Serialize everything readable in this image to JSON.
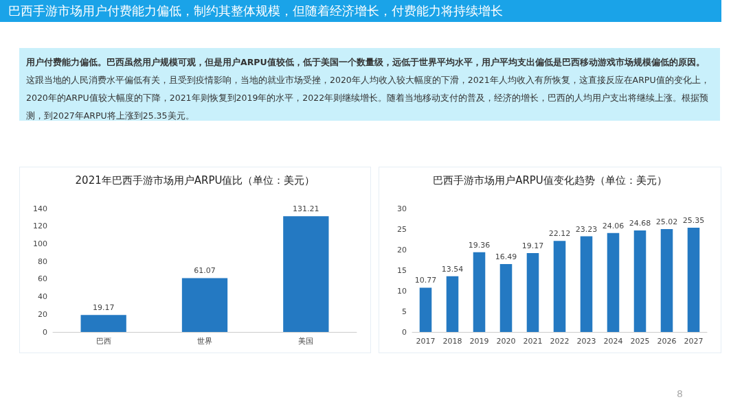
{
  "chart_data": [
    {
      "type": "other",
      "title": "巴西手游市场用户付费能力偏低，制约其整体规模，但随着经济增长，付费能力将持续增长",
      "annotations": [
        "用户付费能力偏低。巴西虽然用户规模可观，但是用户ARPU值较低，低于美国一个数量级，远低于世界平均水平，用户平均支出偏低是巴西移动游戏市场规模偏低的原因。",
        "这跟当地的人民消费水平偏低有关，且受到疫情影响，当地的就业市场受挫，2020年人均收入较大幅度的下滑，2021年人均收入有所恢复，这直接反应在ARPU值的变化上，2020年的ARPU值较大幅度的下降，2021年则恢复到2019年的水平，2022年则继续增长。随着当地移动支付的普及，经济的增长，巴西的人均用户支出将继续上涨。根据预测，到2027年ARPU将上涨到25.35美元。",
        "8"
      ]
    },
    {
      "type": "bar",
      "title": "2021年巴西手游市场用户ARPU值比（单位：美元）",
      "categories": [
        "巴西",
        "世界",
        "美国"
      ],
      "values": [
        19.17,
        61.07,
        131.21
      ],
      "color": "#2479c2",
      "ylim": [
        0,
        140
      ],
      "yticks": [
        0,
        20,
        40,
        60,
        80,
        100,
        120,
        140
      ],
      "data_labels": true
    },
    {
      "type": "bar",
      "title": "巴西手游市场用户ARPU值变化趋势（单位：美元）",
      "categories": [
        "2017",
        "2018",
        "2019",
        "2020",
        "2021",
        "2022",
        "2023",
        "2024",
        "2025",
        "2026",
        "2027"
      ],
      "values": [
        10.77,
        13.54,
        19.36,
        16.49,
        19.17,
        22.12,
        23.23,
        24.06,
        24.68,
        25.02,
        25.35
      ],
      "color": "#2479c2",
      "ylim": [
        0,
        30
      ],
      "yticks": [
        0,
        5,
        10,
        15,
        20,
        25,
        30
      ],
      "data_labels": true
    }
  ]
}
